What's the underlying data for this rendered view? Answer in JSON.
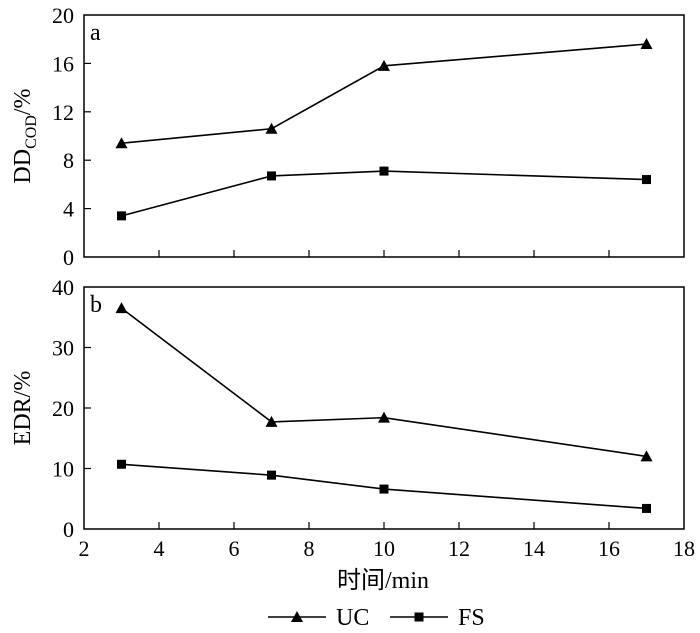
{
  "chart_data": [
    {
      "type": "line",
      "panel_label": "a",
      "ylabel_main": "DD",
      "ylabel_sub": "COD",
      "ylabel_unit": "/%",
      "x": [
        3,
        7,
        10,
        17
      ],
      "xlim": [
        2,
        18
      ],
      "xticks": [
        2,
        4,
        6,
        8,
        10,
        12,
        14,
        16,
        18
      ],
      "ylim": [
        0,
        20
      ],
      "yticks": [
        0,
        4,
        8,
        12,
        16,
        20
      ],
      "series": [
        {
          "name": "UC",
          "marker": "triangle",
          "values": [
            9.4,
            10.6,
            15.8,
            17.6
          ]
        },
        {
          "name": "FS",
          "marker": "square",
          "values": [
            3.4,
            6.7,
            7.1,
            6.4
          ]
        }
      ]
    },
    {
      "type": "line",
      "panel_label": "b",
      "ylabel": "EDR/%",
      "x": [
        3,
        7,
        10,
        17
      ],
      "xlim": [
        2,
        18
      ],
      "xticks": [
        2,
        4,
        6,
        8,
        10,
        12,
        14,
        16,
        18
      ],
      "ylim": [
        0,
        40
      ],
      "yticks": [
        0,
        10,
        20,
        30,
        40
      ],
      "series": [
        {
          "name": "UC",
          "marker": "triangle",
          "values": [
            36.5,
            17.7,
            18.4,
            12.0
          ]
        },
        {
          "name": "FS",
          "marker": "square",
          "values": [
            10.7,
            8.9,
            6.6,
            3.4
          ]
        }
      ]
    }
  ],
  "xlabel": "时间/min",
  "legend": {
    "position": "bottom-center",
    "items": [
      {
        "name": "UC",
        "marker": "triangle"
      },
      {
        "name": "FS",
        "marker": "square"
      }
    ]
  }
}
